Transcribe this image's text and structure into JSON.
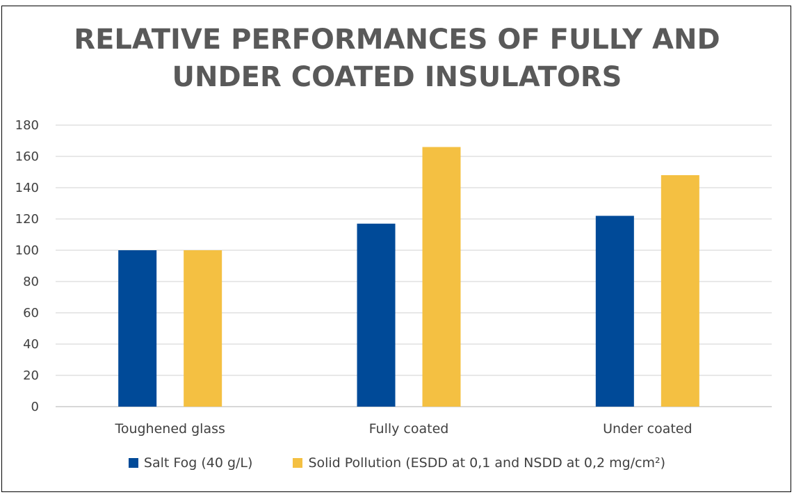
{
  "chart_data": {
    "type": "bar",
    "title_lines": [
      "RELATIVE PERFORMANCES OF FULLY AND",
      "UNDER COATED INSULATORS"
    ],
    "categories": [
      "Toughened glass",
      "Fully coated",
      "Under coated"
    ],
    "series": [
      {
        "name": "Salt Fog (40 g/L)",
        "color": "#004A98",
        "values": [
          100,
          117,
          122
        ]
      },
      {
        "name": "Solid Pollution (ESDD at 0,1 and NSDD at 0,2 mg/cm²)",
        "color": "#F4C042",
        "values": [
          100,
          166,
          148
        ]
      }
    ],
    "ylim": [
      0,
      180
    ],
    "yticks": [
      0,
      20,
      40,
      60,
      80,
      100,
      120,
      140,
      160,
      180
    ],
    "grid": true,
    "legend_position": "bottom"
  }
}
